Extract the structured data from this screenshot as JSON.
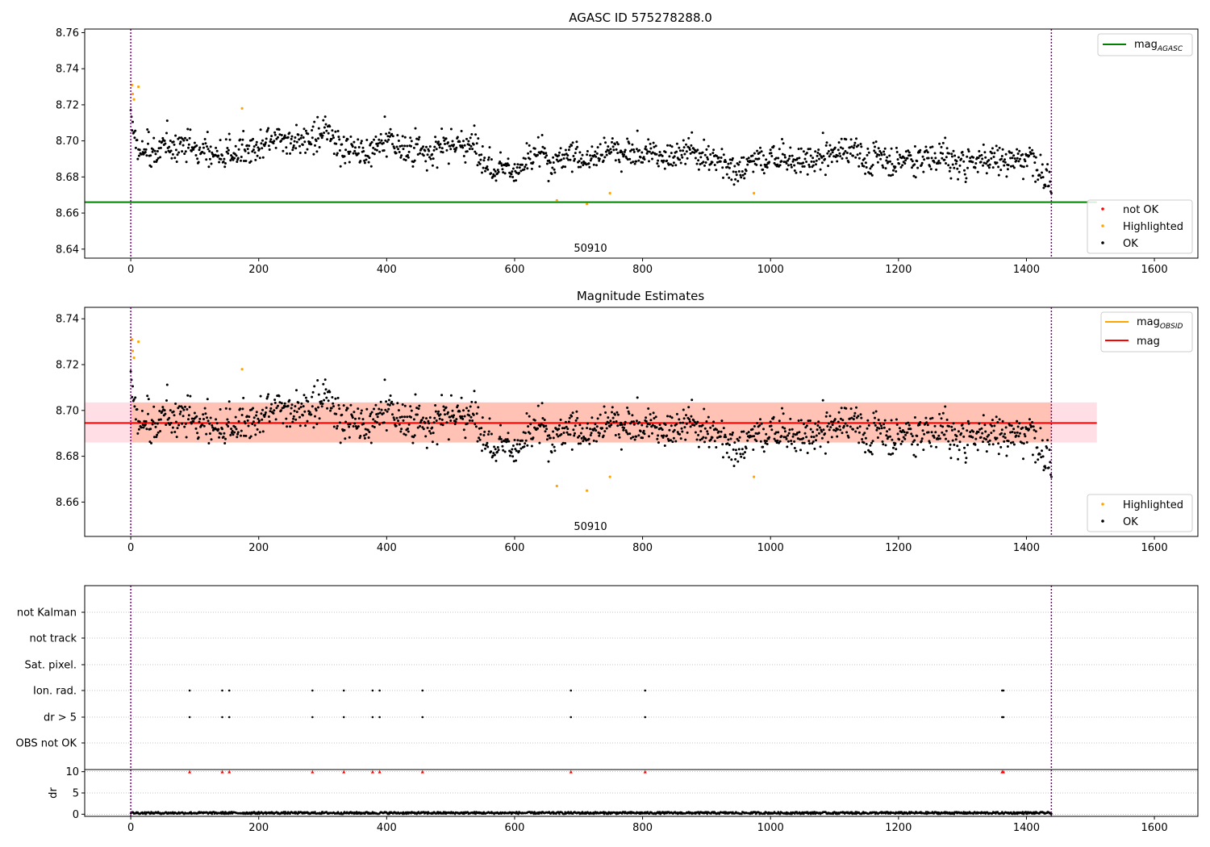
{
  "colors": {
    "ok": "#000000",
    "highlighted": "#ffa500",
    "not_ok": "#ff0000",
    "mag_agasc_line": "#008000",
    "mag_obsid_line": "#ffa500",
    "mag_line": "#ff0000",
    "band_obsid": "#ffa07a",
    "band_mag": "#ffc0cb",
    "boundary_line": "#800080"
  },
  "chart_data": [
    {
      "type": "scatter",
      "title": "AGASC ID 575278288.0",
      "xlabel": "",
      "ylabel": "",
      "xlim": [
        -72,
        1668
      ],
      "ylim": [
        8.635,
        8.762
      ],
      "xticks": [
        "0",
        "200",
        "400",
        "600",
        "800",
        "1000",
        "1200",
        "1400",
        "1600"
      ],
      "yticks": [
        "8.64",
        "8.66",
        "8.68",
        "8.70",
        "8.72",
        "8.74",
        "8.76"
      ],
      "obs_label": "50910",
      "obs_boundaries": [
        0,
        1439
      ],
      "mag_agasc": 8.666,
      "legend_lines": [
        {
          "label": "mag",
          "sub": "AGASC"
        }
      ],
      "legend_points": [
        {
          "label": "not OK"
        },
        {
          "label": "Highlighted"
        },
        {
          "label": "OK"
        }
      ],
      "series": [
        {
          "name": "OK",
          "model": "random walk around 8.694 with noise 0.006, n=1440, x from 0 to 1439"
        },
        {
          "name": "Highlighted",
          "points": [
            [
              2,
              8.731
            ],
            [
              3,
              8.726
            ],
            [
              5,
              8.723
            ],
            [
              12,
              8.73
            ],
            [
              174,
              8.718
            ],
            [
              666,
              8.667
            ],
            [
              713,
              8.665
            ],
            [
              749,
              8.671
            ],
            [
              974,
              8.671
            ]
          ]
        }
      ],
      "grid": false,
      "legend_placement": [
        "top-right",
        "bottom-right"
      ]
    },
    {
      "type": "scatter",
      "title": "Magnitude Estimates",
      "xlabel": "",
      "ylabel": "",
      "xlim": [
        -72,
        1668
      ],
      "ylim": [
        8.645,
        8.745
      ],
      "xticks": [
        "0",
        "200",
        "400",
        "600",
        "800",
        "1000",
        "1200",
        "1400",
        "1600"
      ],
      "yticks": [
        "8.66",
        "8.68",
        "8.70",
        "8.72",
        "8.74"
      ],
      "obs_label": "50910",
      "mag": 8.6945,
      "mag_band": [
        8.686,
        8.7035
      ],
      "mag_obsid": 8.6945,
      "mag_obsid_band": [
        8.686,
        8.7035
      ],
      "legend_lines": [
        {
          "label": "mag",
          "sub": "OBSID"
        },
        {
          "label": "mag",
          "sub": ""
        }
      ],
      "legend_points": [
        {
          "label": "Highlighted"
        },
        {
          "label": "OK"
        }
      ],
      "grid": false,
      "legend_placement": [
        "top-right",
        "bottom-right"
      ]
    },
    {
      "type": "scatter",
      "title": "",
      "xlabel": "",
      "ylabel": "",
      "categories": [
        "not Kalman",
        "not track",
        "Sat. pixel.",
        "Ion. rad.",
        "dr > 5",
        "OBS not OK"
      ],
      "flag_points": {
        "Ion. rad.": [
          92,
          143,
          154,
          284,
          333,
          378,
          389,
          456,
          688,
          804,
          1362,
          1364
        ],
        "dr > 5": [
          92,
          143,
          154,
          284,
          333,
          378,
          389,
          456,
          688,
          804,
          1362,
          1364
        ]
      },
      "grid": true
    },
    {
      "type": "scatter",
      "title": "",
      "xlabel": "",
      "ylabel": "dr",
      "xlim": [
        -72,
        1668
      ],
      "ylim": [
        -0.5,
        10.5
      ],
      "xticks": [
        "0",
        "200",
        "400",
        "600",
        "800",
        "1000",
        "1200",
        "1400",
        "1600"
      ],
      "yticks": [
        "0",
        "5",
        "10"
      ],
      "dr_typical": 0.3,
      "dr_clipped_x": [
        92,
        143,
        154,
        284,
        333,
        378,
        389,
        456,
        688,
        804,
        1362,
        1364
      ],
      "dr_clipped_value": 10,
      "grid": true
    }
  ]
}
